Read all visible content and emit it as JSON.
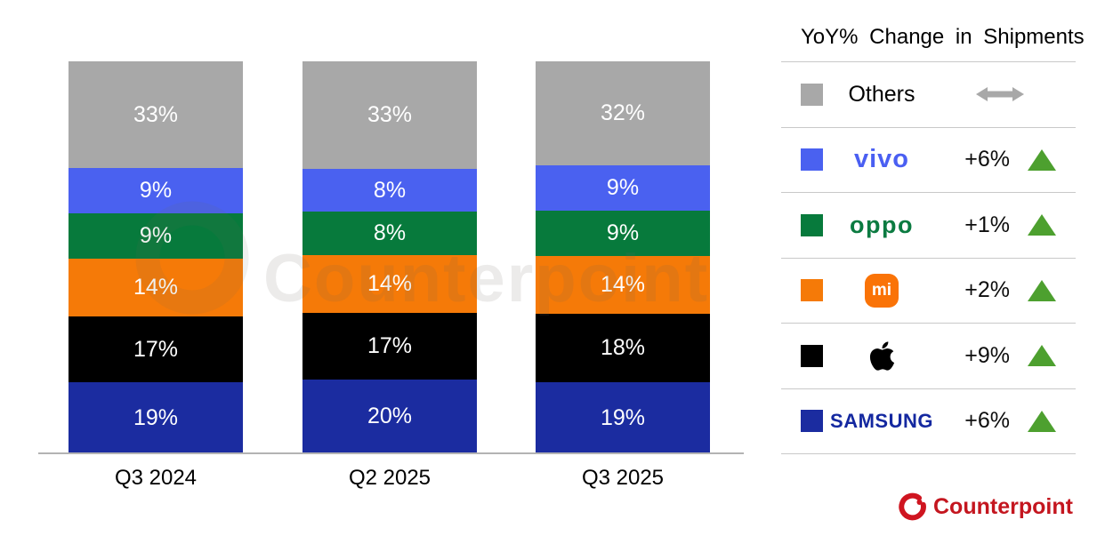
{
  "chart_data": {
    "type": "bar",
    "stacked": true,
    "categories": [
      "Q3 2024",
      "Q2 2025",
      "Q3 2025"
    ],
    "label_suffix": "%",
    "value_labels_shown": true,
    "grid": false,
    "legend_position": "right",
    "series": [
      {
        "name": "Others",
        "color": "#a8a8a8",
        "values": [
          33,
          33,
          32
        ]
      },
      {
        "name": "vivo",
        "color": "#4a61f0",
        "values": [
          9,
          8,
          9
        ]
      },
      {
        "name": "OPPO",
        "color": "#077a3c",
        "values": [
          9,
          8,
          9
        ]
      },
      {
        "name": "Xiaomi",
        "color": "#f57a08",
        "values": [
          14,
          14,
          14
        ]
      },
      {
        "name": "Apple",
        "color": "#000000",
        "values": [
          17,
          17,
          18
        ]
      },
      {
        "name": "Samsung",
        "color": "#1b2ca0",
        "values": [
          19,
          20,
          19
        ]
      }
    ]
  },
  "legend": {
    "title": "YoY% Change in Shipments",
    "trend_up_color": "#4da02f",
    "trend_flat_color": "#a8a8a8",
    "rows": [
      {
        "label": "Others",
        "color": "#a8a8a8",
        "change": "",
        "trend": "flat"
      },
      {
        "label": "vivo",
        "logo_text": "vivo",
        "color": "#4a61f0",
        "change": "+6%",
        "trend": "up"
      },
      {
        "label": "OPPO",
        "logo_text": "oppo",
        "color": "#077a3c",
        "change": "+1%",
        "trend": "up"
      },
      {
        "label": "Xiaomi",
        "logo_text": "mi",
        "color": "#f57a08",
        "change": "+2%",
        "trend": "up"
      },
      {
        "label": "Apple",
        "color": "#000000",
        "change": "+9%",
        "trend": "up"
      },
      {
        "label": "Samsung",
        "logo_text": "SAMSUNG",
        "color": "#1b2ca0",
        "change": "+6%",
        "trend": "up"
      }
    ]
  },
  "watermark": {
    "text": "Counterpoint"
  },
  "footer": {
    "brand": "Counterpoint",
    "color": "#c4161f"
  }
}
